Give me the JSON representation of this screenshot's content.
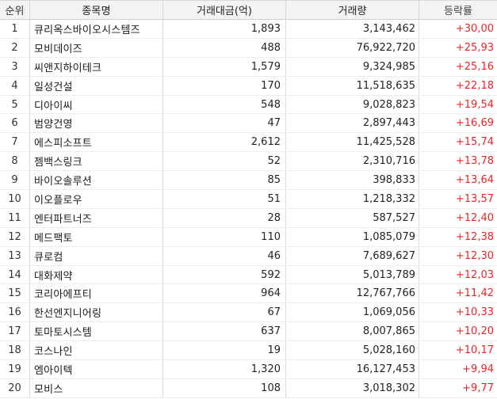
{
  "colors": {
    "rise": "#e8262a",
    "header_bg": "#f3f3f3"
  },
  "header": {
    "rank": "순위",
    "name": "종목명",
    "trade_amount": "거래대금(억)",
    "volume": "거래량",
    "change_rate": "등락률"
  },
  "rows": [
    {
      "rank": "1",
      "name": "큐리옥스바이오시스템즈",
      "trade_amount": "1,893",
      "volume": "3,143,462",
      "change_rate": "+30,00"
    },
    {
      "rank": "2",
      "name": "모비데이즈",
      "trade_amount": "488",
      "volume": "76,922,720",
      "change_rate": "+25,93"
    },
    {
      "rank": "3",
      "name": "씨앤지하이테크",
      "trade_amount": "1,579",
      "volume": "9,324,985",
      "change_rate": "+25,16"
    },
    {
      "rank": "4",
      "name": "일성건설",
      "trade_amount": "170",
      "volume": "11,518,635",
      "change_rate": "+22,18"
    },
    {
      "rank": "5",
      "name": "디아이씨",
      "trade_amount": "548",
      "volume": "9,028,823",
      "change_rate": "+19,54"
    },
    {
      "rank": "6",
      "name": "범양건영",
      "trade_amount": "47",
      "volume": "2,897,443",
      "change_rate": "+16,69"
    },
    {
      "rank": "7",
      "name": "에스피소프트",
      "trade_amount": "2,612",
      "volume": "11,425,528",
      "change_rate": "+15,74"
    },
    {
      "rank": "8",
      "name": "젬백스링크",
      "trade_amount": "52",
      "volume": "2,310,716",
      "change_rate": "+13,78"
    },
    {
      "rank": "9",
      "name": "바이오솔루션",
      "trade_amount": "85",
      "volume": "398,833",
      "change_rate": "+13,64"
    },
    {
      "rank": "10",
      "name": "이오플로우",
      "trade_amount": "51",
      "volume": "1,218,332",
      "change_rate": "+13,57"
    },
    {
      "rank": "11",
      "name": "엔터파트너즈",
      "trade_amount": "28",
      "volume": "587,527",
      "change_rate": "+12,40"
    },
    {
      "rank": "12",
      "name": "메드팩토",
      "trade_amount": "110",
      "volume": "1,085,079",
      "change_rate": "+12,38"
    },
    {
      "rank": "13",
      "name": "큐로컴",
      "trade_amount": "46",
      "volume": "7,689,627",
      "change_rate": "+12,30"
    },
    {
      "rank": "14",
      "name": "대화제약",
      "trade_amount": "592",
      "volume": "5,013,789",
      "change_rate": "+12,03"
    },
    {
      "rank": "15",
      "name": "코리아에프티",
      "trade_amount": "964",
      "volume": "12,767,766",
      "change_rate": "+11,42"
    },
    {
      "rank": "16",
      "name": "한선엔지니어링",
      "trade_amount": "67",
      "volume": "1,069,056",
      "change_rate": "+10,33"
    },
    {
      "rank": "17",
      "name": "토마토시스템",
      "trade_amount": "637",
      "volume": "8,007,865",
      "change_rate": "+10,20"
    },
    {
      "rank": "18",
      "name": "코스나인",
      "trade_amount": "19",
      "volume": "5,028,160",
      "change_rate": "+10,17"
    },
    {
      "rank": "19",
      "name": "엠아이텍",
      "trade_amount": "1,320",
      "volume": "16,127,453",
      "change_rate": "+9,94"
    },
    {
      "rank": "20",
      "name": "모비스",
      "trade_amount": "108",
      "volume": "3,018,302",
      "change_rate": "+9,77"
    }
  ]
}
